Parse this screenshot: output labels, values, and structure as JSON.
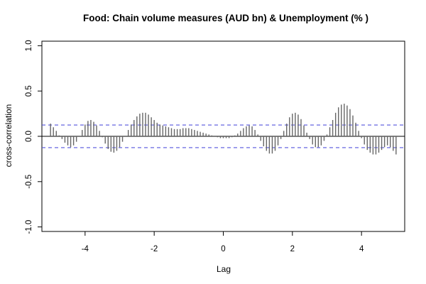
{
  "chart_data": {
    "type": "bar",
    "title": "Food: Chain volume measures (AUD bn) & Unemployment (% )",
    "xlabel": "Lag",
    "ylabel": "cross-correlation",
    "xlim": [
      -5.25,
      5.25
    ],
    "ylim": [
      -1.05,
      1.05
    ],
    "x_ticks": [
      -4,
      -2,
      0,
      2,
      4
    ],
    "x_tick_labels": [
      "-4",
      "-2",
      "0",
      "2",
      "4"
    ],
    "y_ticks": [
      -1.0,
      -0.5,
      0.0,
      0.5,
      1.0
    ],
    "y_tick_labels": [
      "-1.0",
      "-0.5",
      "0.0",
      "0.5",
      "1.0"
    ],
    "confidence_band": 0.125,
    "zero_line": true,
    "grid": false,
    "colors": {
      "bars": "#666666",
      "confidence": "#5555dd",
      "axes": "#000000"
    },
    "lags": [
      -5.0,
      -4.9167,
      -4.8333,
      -4.75,
      -4.6667,
      -4.5833,
      -4.5,
      -4.4167,
      -4.3333,
      -4.25,
      -4.1667,
      -4.0833,
      -4.0,
      -3.9167,
      -3.8333,
      -3.75,
      -3.6667,
      -3.5833,
      -3.5,
      -3.4167,
      -3.3333,
      -3.25,
      -3.1667,
      -3.0833,
      -3.0,
      -2.9167,
      -2.8333,
      -2.75,
      -2.6667,
      -2.5833,
      -2.5,
      -2.4167,
      -2.3333,
      -2.25,
      -2.1667,
      -2.0833,
      -2.0,
      -1.9167,
      -1.8333,
      -1.75,
      -1.6667,
      -1.5833,
      -1.5,
      -1.4167,
      -1.3333,
      -1.25,
      -1.1667,
      -1.0833,
      -1.0,
      -0.9167,
      -0.8333,
      -0.75,
      -0.6667,
      -0.5833,
      -0.5,
      -0.4167,
      -0.3333,
      -0.25,
      -0.1667,
      -0.0833,
      0.0,
      0.0833,
      0.1667,
      0.25,
      0.3333,
      0.4167,
      0.5,
      0.5833,
      0.6667,
      0.75,
      0.8333,
      0.9167,
      1.0,
      1.0833,
      1.1667,
      1.25,
      1.3333,
      1.4167,
      1.5,
      1.5833,
      1.6667,
      1.75,
      1.8333,
      1.9167,
      2.0,
      2.0833,
      2.1667,
      2.25,
      2.3333,
      2.4167,
      2.5,
      2.5833,
      2.6667,
      2.75,
      2.8333,
      2.9167,
      3.0,
      3.0833,
      3.1667,
      3.25,
      3.3333,
      3.4167,
      3.5,
      3.5833,
      3.6667,
      3.75,
      3.8333,
      3.9167,
      4.0,
      4.0833,
      4.1667,
      4.25,
      4.3333,
      4.4167,
      4.5,
      4.5833,
      4.6667,
      4.75,
      4.8333,
      4.9167,
      5.0
    ],
    "values": [
      0.14,
      0.1,
      0.06,
      0.01,
      -0.03,
      -0.07,
      -0.1,
      -0.12,
      -0.1,
      -0.06,
      0.0,
      0.07,
      0.13,
      0.17,
      0.18,
      0.16,
      0.12,
      0.06,
      -0.01,
      -0.08,
      -0.14,
      -0.17,
      -0.18,
      -0.16,
      -0.12,
      -0.06,
      0.0,
      0.07,
      0.13,
      0.18,
      0.22,
      0.25,
      0.26,
      0.26,
      0.24,
      0.21,
      0.18,
      0.15,
      0.13,
      0.12,
      0.11,
      0.1,
      0.09,
      0.08,
      0.08,
      0.08,
      0.09,
      0.09,
      0.09,
      0.08,
      0.07,
      0.06,
      0.05,
      0.04,
      0.03,
      0.02,
      0.01,
      0.0,
      -0.01,
      -0.02,
      -0.02,
      -0.02,
      -0.02,
      -0.01,
      0.01,
      0.03,
      0.06,
      0.09,
      0.11,
      0.12,
      0.11,
      0.07,
      0.02,
      -0.05,
      -0.11,
      -0.16,
      -0.19,
      -0.19,
      -0.16,
      -0.1,
      -0.03,
      0.06,
      0.14,
      0.21,
      0.25,
      0.26,
      0.24,
      0.19,
      0.12,
      0.04,
      -0.03,
      -0.09,
      -0.12,
      -0.12,
      -0.1,
      -0.05,
      0.02,
      0.1,
      0.18,
      0.26,
      0.32,
      0.35,
      0.36,
      0.34,
      0.3,
      0.23,
      0.15,
      0.06,
      -0.02,
      -0.09,
      -0.15,
      -0.18,
      -0.2,
      -0.2,
      -0.18,
      -0.15,
      -0.12,
      -0.1,
      -0.12,
      -0.16,
      -0.2
    ]
  }
}
